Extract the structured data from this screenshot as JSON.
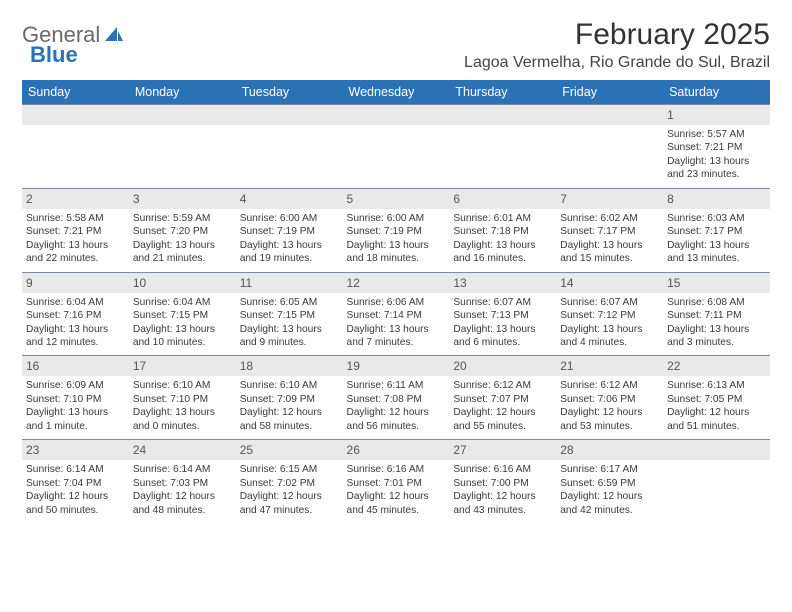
{
  "brand": {
    "word1": "General",
    "word2": "Blue"
  },
  "title": "February 2025",
  "location": "Lagoa Vermelha, Rio Grande do Sul, Brazil",
  "colors": {
    "header_bg": "#2a72b5",
    "header_text": "#ffffff",
    "daynum_bg": "#e9e9e9",
    "row_divider": "#7a8ca0",
    "body_text": "#3a3a3a",
    "title_text": "#333333"
  },
  "typography": {
    "title_fontsize": 30,
    "location_fontsize": 16,
    "header_fontsize": 12.5,
    "daynum_fontsize": 12,
    "body_fontsize": 10.2
  },
  "columns": [
    "Sunday",
    "Monday",
    "Tuesday",
    "Wednesday",
    "Thursday",
    "Friday",
    "Saturday"
  ],
  "weeks": [
    [
      null,
      null,
      null,
      null,
      null,
      null,
      {
        "n": "1",
        "sr": "Sunrise: 5:57 AM",
        "ss": "Sunset: 7:21 PM",
        "d1": "Daylight: 13 hours",
        "d2": "and 23 minutes."
      }
    ],
    [
      {
        "n": "2",
        "sr": "Sunrise: 5:58 AM",
        "ss": "Sunset: 7:21 PM",
        "d1": "Daylight: 13 hours",
        "d2": "and 22 minutes."
      },
      {
        "n": "3",
        "sr": "Sunrise: 5:59 AM",
        "ss": "Sunset: 7:20 PM",
        "d1": "Daylight: 13 hours",
        "d2": "and 21 minutes."
      },
      {
        "n": "4",
        "sr": "Sunrise: 6:00 AM",
        "ss": "Sunset: 7:19 PM",
        "d1": "Daylight: 13 hours",
        "d2": "and 19 minutes."
      },
      {
        "n": "5",
        "sr": "Sunrise: 6:00 AM",
        "ss": "Sunset: 7:19 PM",
        "d1": "Daylight: 13 hours",
        "d2": "and 18 minutes."
      },
      {
        "n": "6",
        "sr": "Sunrise: 6:01 AM",
        "ss": "Sunset: 7:18 PM",
        "d1": "Daylight: 13 hours",
        "d2": "and 16 minutes."
      },
      {
        "n": "7",
        "sr": "Sunrise: 6:02 AM",
        "ss": "Sunset: 7:17 PM",
        "d1": "Daylight: 13 hours",
        "d2": "and 15 minutes."
      },
      {
        "n": "8",
        "sr": "Sunrise: 6:03 AM",
        "ss": "Sunset: 7:17 PM",
        "d1": "Daylight: 13 hours",
        "d2": "and 13 minutes."
      }
    ],
    [
      {
        "n": "9",
        "sr": "Sunrise: 6:04 AM",
        "ss": "Sunset: 7:16 PM",
        "d1": "Daylight: 13 hours",
        "d2": "and 12 minutes."
      },
      {
        "n": "10",
        "sr": "Sunrise: 6:04 AM",
        "ss": "Sunset: 7:15 PM",
        "d1": "Daylight: 13 hours",
        "d2": "and 10 minutes."
      },
      {
        "n": "11",
        "sr": "Sunrise: 6:05 AM",
        "ss": "Sunset: 7:15 PM",
        "d1": "Daylight: 13 hours",
        "d2": "and 9 minutes."
      },
      {
        "n": "12",
        "sr": "Sunrise: 6:06 AM",
        "ss": "Sunset: 7:14 PM",
        "d1": "Daylight: 13 hours",
        "d2": "and 7 minutes."
      },
      {
        "n": "13",
        "sr": "Sunrise: 6:07 AM",
        "ss": "Sunset: 7:13 PM",
        "d1": "Daylight: 13 hours",
        "d2": "and 6 minutes."
      },
      {
        "n": "14",
        "sr": "Sunrise: 6:07 AM",
        "ss": "Sunset: 7:12 PM",
        "d1": "Daylight: 13 hours",
        "d2": "and 4 minutes."
      },
      {
        "n": "15",
        "sr": "Sunrise: 6:08 AM",
        "ss": "Sunset: 7:11 PM",
        "d1": "Daylight: 13 hours",
        "d2": "and 3 minutes."
      }
    ],
    [
      {
        "n": "16",
        "sr": "Sunrise: 6:09 AM",
        "ss": "Sunset: 7:10 PM",
        "d1": "Daylight: 13 hours",
        "d2": "and 1 minute."
      },
      {
        "n": "17",
        "sr": "Sunrise: 6:10 AM",
        "ss": "Sunset: 7:10 PM",
        "d1": "Daylight: 13 hours",
        "d2": "and 0 minutes."
      },
      {
        "n": "18",
        "sr": "Sunrise: 6:10 AM",
        "ss": "Sunset: 7:09 PM",
        "d1": "Daylight: 12 hours",
        "d2": "and 58 minutes."
      },
      {
        "n": "19",
        "sr": "Sunrise: 6:11 AM",
        "ss": "Sunset: 7:08 PM",
        "d1": "Daylight: 12 hours",
        "d2": "and 56 minutes."
      },
      {
        "n": "20",
        "sr": "Sunrise: 6:12 AM",
        "ss": "Sunset: 7:07 PM",
        "d1": "Daylight: 12 hours",
        "d2": "and 55 minutes."
      },
      {
        "n": "21",
        "sr": "Sunrise: 6:12 AM",
        "ss": "Sunset: 7:06 PM",
        "d1": "Daylight: 12 hours",
        "d2": "and 53 minutes."
      },
      {
        "n": "22",
        "sr": "Sunrise: 6:13 AM",
        "ss": "Sunset: 7:05 PM",
        "d1": "Daylight: 12 hours",
        "d2": "and 51 minutes."
      }
    ],
    [
      {
        "n": "23",
        "sr": "Sunrise: 6:14 AM",
        "ss": "Sunset: 7:04 PM",
        "d1": "Daylight: 12 hours",
        "d2": "and 50 minutes."
      },
      {
        "n": "24",
        "sr": "Sunrise: 6:14 AM",
        "ss": "Sunset: 7:03 PM",
        "d1": "Daylight: 12 hours",
        "d2": "and 48 minutes."
      },
      {
        "n": "25",
        "sr": "Sunrise: 6:15 AM",
        "ss": "Sunset: 7:02 PM",
        "d1": "Daylight: 12 hours",
        "d2": "and 47 minutes."
      },
      {
        "n": "26",
        "sr": "Sunrise: 6:16 AM",
        "ss": "Sunset: 7:01 PM",
        "d1": "Daylight: 12 hours",
        "d2": "and 45 minutes."
      },
      {
        "n": "27",
        "sr": "Sunrise: 6:16 AM",
        "ss": "Sunset: 7:00 PM",
        "d1": "Daylight: 12 hours",
        "d2": "and 43 minutes."
      },
      {
        "n": "28",
        "sr": "Sunrise: 6:17 AM",
        "ss": "Sunset: 6:59 PM",
        "d1": "Daylight: 12 hours",
        "d2": "and 42 minutes."
      },
      null
    ]
  ]
}
